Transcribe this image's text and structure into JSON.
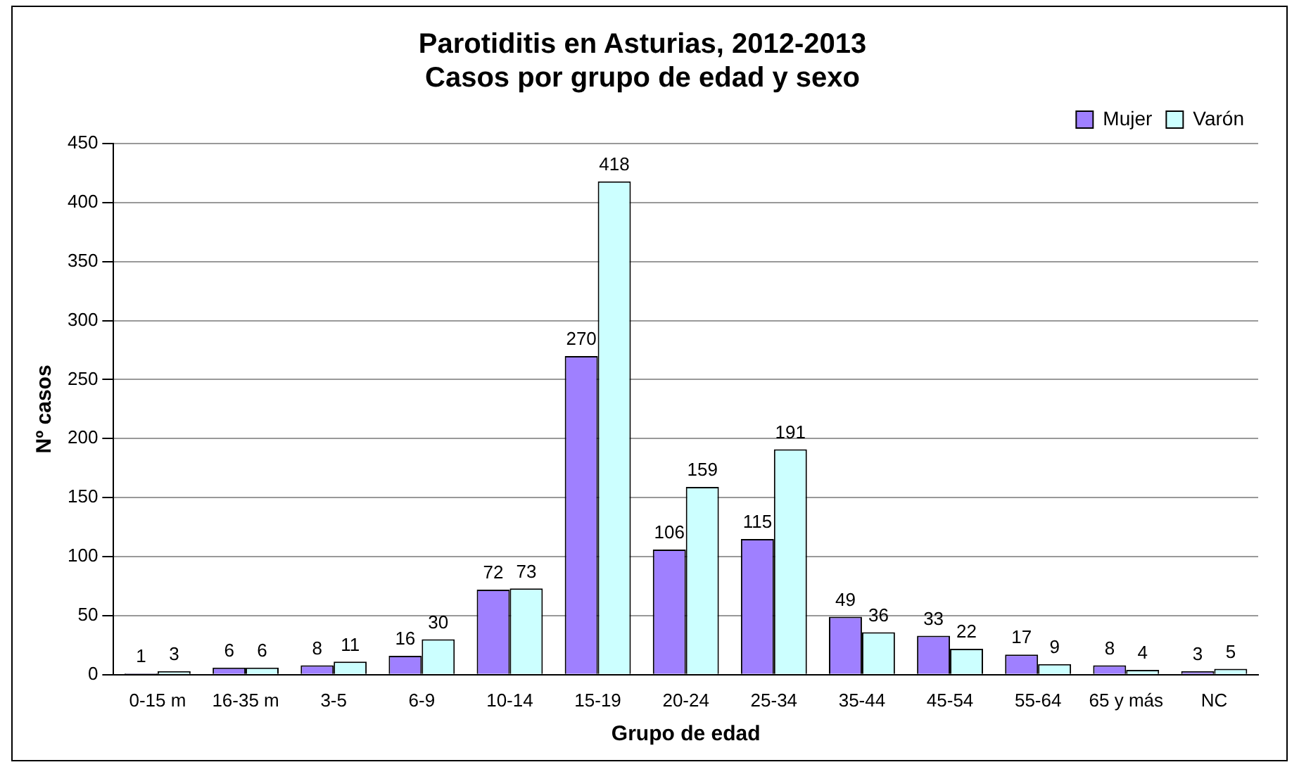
{
  "chart_data": {
    "type": "bar",
    "title": [
      "Parotiditis en Asturias, 2012-2013",
      "Casos por grupo de edad y sexo"
    ],
    "xlabel": "Grupo de edad",
    "ylabel": "Nº casos",
    "categories": [
      "0-15 m",
      "16-35 m",
      "3-5",
      "6-9",
      "10-14",
      "15-19",
      "20-24",
      "25-34",
      "35-44",
      "45-54",
      "55-64",
      "65 y más",
      "NC"
    ],
    "series": [
      {
        "name": "Mujer",
        "color": "#9f80ff",
        "values": [
          1,
          6,
          8,
          16,
          72,
          270,
          106,
          115,
          49,
          33,
          17,
          8,
          3
        ]
      },
      {
        "name": "Varón",
        "color": "#ccffff",
        "values": [
          3,
          6,
          11,
          30,
          73,
          418,
          159,
          191,
          36,
          22,
          9,
          4,
          5
        ]
      }
    ],
    "ylim": [
      0,
      450
    ],
    "yticks": [
      0,
      50,
      100,
      150,
      200,
      250,
      300,
      350,
      400,
      450
    ],
    "grid": "y",
    "legend": "top right",
    "data_labels": true
  }
}
